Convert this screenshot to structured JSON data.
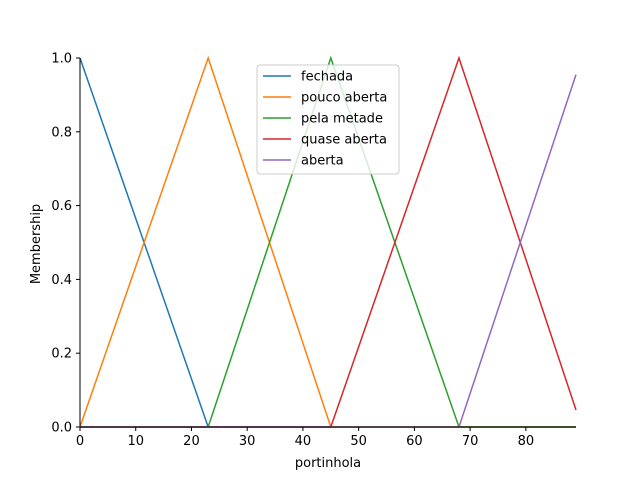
{
  "chart_data": {
    "type": "line",
    "title": "",
    "xlabel": "portinhola",
    "ylabel": "Membership",
    "xlim": [
      0,
      89
    ],
    "ylim": [
      0,
      1.0
    ],
    "xticks": [
      0,
      10,
      20,
      30,
      40,
      50,
      60,
      70,
      80
    ],
    "yticks": [
      0.0,
      0.2,
      0.4,
      0.6,
      0.8,
      1.0
    ],
    "ytick_labels": [
      "0.0",
      "0.2",
      "0.4",
      "0.6",
      "0.8",
      "1.0"
    ],
    "grid": false,
    "legend_placement": "top-center",
    "series": [
      {
        "name": "fechada",
        "color": "#1f77b4",
        "x": [
          0,
          23,
          89
        ],
        "y": [
          1.0,
          0.0,
          0.0
        ]
      },
      {
        "name": "pouco aberta",
        "color": "#ff7f0e",
        "x": [
          0,
          23,
          45,
          89
        ],
        "y": [
          0.0,
          1.0,
          0.0,
          0.0
        ]
      },
      {
        "name": "pela metade",
        "color": "#2ca02c",
        "x": [
          0,
          23,
          45,
          68,
          89
        ],
        "y": [
          0.0,
          0.0,
          1.0,
          0.0,
          0.0
        ]
      },
      {
        "name": "quase aberta",
        "color": "#d62728",
        "x": [
          0,
          45,
          68,
          89
        ],
        "y": [
          0.0,
          0.0,
          1.0,
          0.046
        ]
      },
      {
        "name": "aberta",
        "color": "#9467bd",
        "x": [
          0,
          68,
          89
        ],
        "y": [
          0.0,
          0.0,
          0.955
        ]
      }
    ]
  }
}
